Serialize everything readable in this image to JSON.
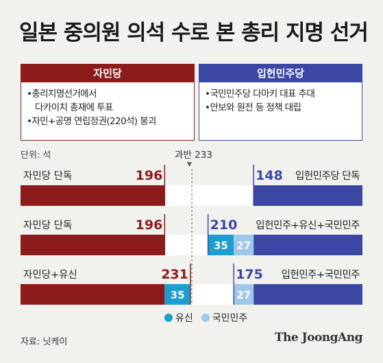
{
  "title": "일본 중의원 의석 수로 본 총리 지명 선거",
  "left_box": {
    "header": "자민당",
    "items": [
      "•총리지명선거에서",
      "다카이치 총재에 투표",
      "•자민+공명 연립정권(220석) 붕괴"
    ]
  },
  "right_box": {
    "header": "입헌민주당",
    "items": [
      "•국민민주당 다마키 대표 추대",
      "•안보와 원전 등 정책 대립"
    ]
  },
  "unit_label": "단위: 석",
  "majority_label": "과반 233",
  "legend": [
    {
      "label": "유신",
      "color": "#1a9fd0"
    },
    {
      "label": "국민민주",
      "color": "#9dc8ea"
    }
  ],
  "source": "자료: 닛케이",
  "logo": "The JoongAng",
  "colors": {
    "ldp": "#8c1b1b",
    "cdp": "#3b47a3",
    "ishin": "#1a9fd0",
    "dpfp": "#9dc8ea"
  },
  "chart_data": {
    "type": "bar",
    "total_seats": 465,
    "majority": 233,
    "scenarios": [
      {
        "left": {
          "label": "자민당 단독",
          "total": 196,
          "segments": [
            {
              "party": "자민당",
              "value": 196
            }
          ]
        },
        "right": {
          "label": "입헌민주당 단독",
          "total": 148,
          "segments": [
            {
              "party": "입헌민주당",
              "value": 148
            }
          ]
        }
      },
      {
        "left": {
          "label": "자민당 단독",
          "total": 196,
          "segments": [
            {
              "party": "자민당",
              "value": 196
            }
          ]
        },
        "right": {
          "label": "입헌민주+유신+국민민주",
          "total": 210,
          "segments": [
            {
              "party": "유신",
              "value": 35
            },
            {
              "party": "국민민주",
              "value": 27
            },
            {
              "party": "입헌민주당",
              "value": 148
            }
          ]
        }
      },
      {
        "left": {
          "label": "자민당+유신",
          "total": 231,
          "segments": [
            {
              "party": "자민당",
              "value": 196
            },
            {
              "party": "유신",
              "value": 35
            }
          ]
        },
        "right": {
          "label": "입헌민주+국민민주",
          "total": 175,
          "segments": [
            {
              "party": "국민민주",
              "value": 27
            },
            {
              "party": "입헌민주당",
              "value": 148
            }
          ]
        }
      }
    ]
  }
}
